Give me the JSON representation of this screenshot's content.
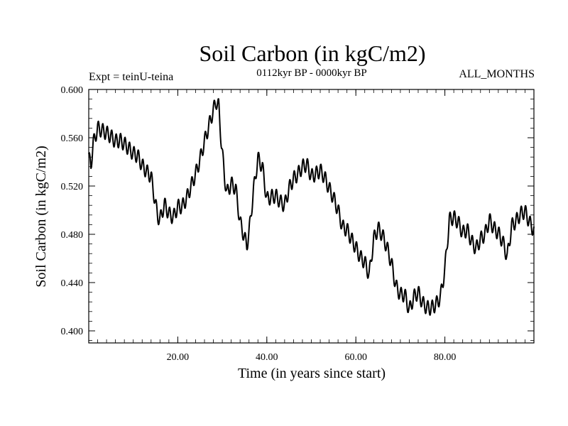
{
  "chart_data": {
    "type": "line",
    "title": "Soil Carbon (in kgC/m2)",
    "subtitle_left": "Expt = teinU-teina",
    "subtitle_center": "0112kyr BP - 0000kyr BP",
    "subtitle_right": "ALL_MONTHS",
    "xlabel": "Time (in years since start)",
    "ylabel": "Soil Carbon (in kgC/m2)",
    "xlim": [
      0,
      100
    ],
    "ylim": [
      0.39,
      0.6
    ],
    "xticks": [
      {
        "value": 20,
        "label": "20.00"
      },
      {
        "value": 40,
        "label": "40.00"
      },
      {
        "value": 60,
        "label": "60.00"
      },
      {
        "value": 80,
        "label": "80.00"
      }
    ],
    "yticks": [
      {
        "value": 0.4,
        "label": "0.400"
      },
      {
        "value": 0.44,
        "label": "0.440"
      },
      {
        "value": 0.48,
        "label": "0.480"
      },
      {
        "value": 0.52,
        "label": "0.520"
      },
      {
        "value": 0.56,
        "label": "0.560"
      },
      {
        "value": 0.6,
        "label": "0.600"
      }
    ],
    "series": [
      {
        "name": "Soil Carbon",
        "color": "#000000",
        "annual_cycle_amplitude": 0.006,
        "x": [
          0,
          0.5,
          1,
          2,
          3,
          4,
          5,
          6,
          7,
          8,
          9,
          10,
          11,
          12,
          13,
          14,
          15,
          15.5,
          16,
          17,
          18,
          19,
          20,
          21,
          22,
          23,
          24,
          25,
          26,
          27,
          28,
          28.6,
          29.2,
          29.8,
          30.5,
          31,
          32,
          33,
          34,
          35,
          35.5,
          36,
          37,
          38,
          39,
          40,
          41,
          42,
          43,
          44,
          45,
          46,
          47,
          48,
          49,
          50,
          51,
          52,
          53,
          54,
          55,
          56,
          57,
          58,
          59,
          60,
          61,
          62,
          63,
          64,
          65,
          66,
          67,
          68,
          69,
          70,
          71,
          72,
          73,
          74,
          75,
          76,
          77,
          78,
          79,
          80,
          81,
          82,
          83,
          84,
          85,
          86,
          87,
          88,
          89,
          90,
          91,
          92,
          93,
          94,
          95,
          96,
          97,
          98,
          99,
          100
        ],
        "values": [
          0.543,
          0.538,
          0.555,
          0.568,
          0.566,
          0.564,
          0.561,
          0.557,
          0.558,
          0.555,
          0.551,
          0.547,
          0.545,
          0.537,
          0.532,
          0.528,
          0.505,
          0.495,
          0.492,
          0.505,
          0.497,
          0.494,
          0.503,
          0.503,
          0.51,
          0.52,
          0.53,
          0.542,
          0.557,
          0.57,
          0.583,
          0.59,
          0.586,
          0.555,
          0.528,
          0.514,
          0.522,
          0.518,
          0.49,
          0.477,
          0.471,
          0.481,
          0.516,
          0.543,
          0.536,
          0.509,
          0.511,
          0.512,
          0.507,
          0.504,
          0.518,
          0.526,
          0.53,
          0.536,
          0.538,
          0.528,
          0.53,
          0.533,
          0.527,
          0.518,
          0.51,
          0.5,
          0.486,
          0.484,
          0.476,
          0.469,
          0.461,
          0.457,
          0.446,
          0.476,
          0.485,
          0.479,
          0.469,
          0.456,
          0.437,
          0.43,
          0.43,
          0.417,
          0.428,
          0.432,
          0.423,
          0.419,
          0.419,
          0.422,
          0.428,
          0.451,
          0.492,
          0.494,
          0.49,
          0.481,
          0.484,
          0.474,
          0.468,
          0.476,
          0.48,
          0.492,
          0.485,
          0.481,
          0.474,
          0.461,
          0.487,
          0.491,
          0.497,
          0.499,
          0.49,
          0.483
        ]
      }
    ]
  }
}
